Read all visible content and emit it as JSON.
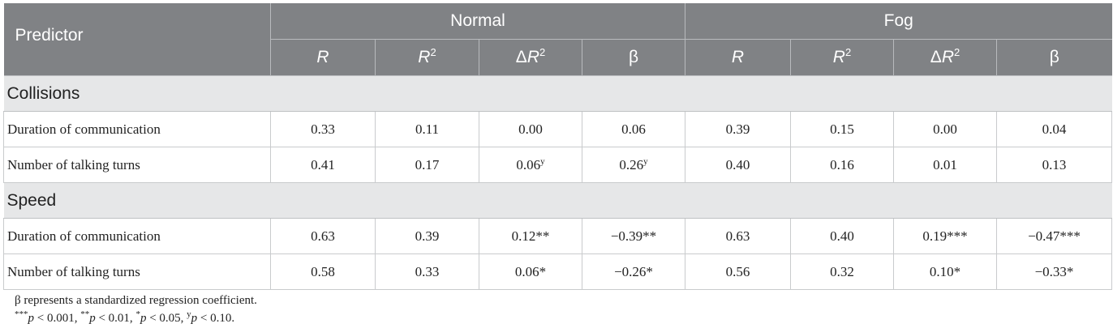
{
  "header": {
    "predictor_label": "Predictor",
    "groups": [
      "Normal",
      "Fog"
    ],
    "columns": [
      {
        "base": "R",
        "sup": ""
      },
      {
        "base": "R",
        "sup": "2"
      },
      {
        "pre": "Δ",
        "base": "R",
        "sup": "2"
      },
      {
        "base": "β",
        "sup": ""
      }
    ]
  },
  "sections": [
    {
      "title": "Collisions",
      "rows": [
        {
          "label": "Duration of communication",
          "values": [
            {
              "v": "0.33",
              "s": ""
            },
            {
              "v": "0.11",
              "s": ""
            },
            {
              "v": "0.00",
              "s": ""
            },
            {
              "v": "0.06",
              "s": ""
            },
            {
              "v": "0.39",
              "s": ""
            },
            {
              "v": "0.15",
              "s": ""
            },
            {
              "v": "0.00",
              "s": ""
            },
            {
              "v": "0.04",
              "s": ""
            }
          ]
        },
        {
          "label": "Number of talking turns",
          "values": [
            {
              "v": "0.41",
              "s": ""
            },
            {
              "v": "0.17",
              "s": ""
            },
            {
              "v": "0.06",
              "s": "y"
            },
            {
              "v": "0.26",
              "s": "y"
            },
            {
              "v": "0.40",
              "s": ""
            },
            {
              "v": "0.16",
              "s": ""
            },
            {
              "v": "0.01",
              "s": ""
            },
            {
              "v": "0.13",
              "s": ""
            }
          ]
        }
      ]
    },
    {
      "title": "Speed",
      "rows": [
        {
          "label": "Duration of communication",
          "values": [
            {
              "v": "0.63",
              "s": ""
            },
            {
              "v": "0.39",
              "s": ""
            },
            {
              "v": "0.12**",
              "s": ""
            },
            {
              "v": "−0.39**",
              "s": ""
            },
            {
              "v": "0.63",
              "s": ""
            },
            {
              "v": "0.40",
              "s": ""
            },
            {
              "v": "0.19***",
              "s": ""
            },
            {
              "v": "−0.47***",
              "s": ""
            }
          ]
        },
        {
          "label": "Number of talking turns",
          "values": [
            {
              "v": "0.58",
              "s": ""
            },
            {
              "v": "0.33",
              "s": ""
            },
            {
              "v": "0.06*",
              "s": ""
            },
            {
              "v": "−0.26*",
              "s": ""
            },
            {
              "v": "0.56",
              "s": ""
            },
            {
              "v": "0.32",
              "s": ""
            },
            {
              "v": "0.10*",
              "s": ""
            },
            {
              "v": "−0.33*",
              "s": ""
            }
          ]
        }
      ]
    }
  ],
  "notes": {
    "line1": "β represents a standardized regression coefficient.",
    "line2": [
      {
        "sup": "***",
        "text": "p < 0.001, "
      },
      {
        "sup": "**",
        "text": "p < 0.01, "
      },
      {
        "sup": "*",
        "text": "p < 0.05, "
      },
      {
        "sup": "y",
        "text": "p < 0.10."
      }
    ]
  }
}
